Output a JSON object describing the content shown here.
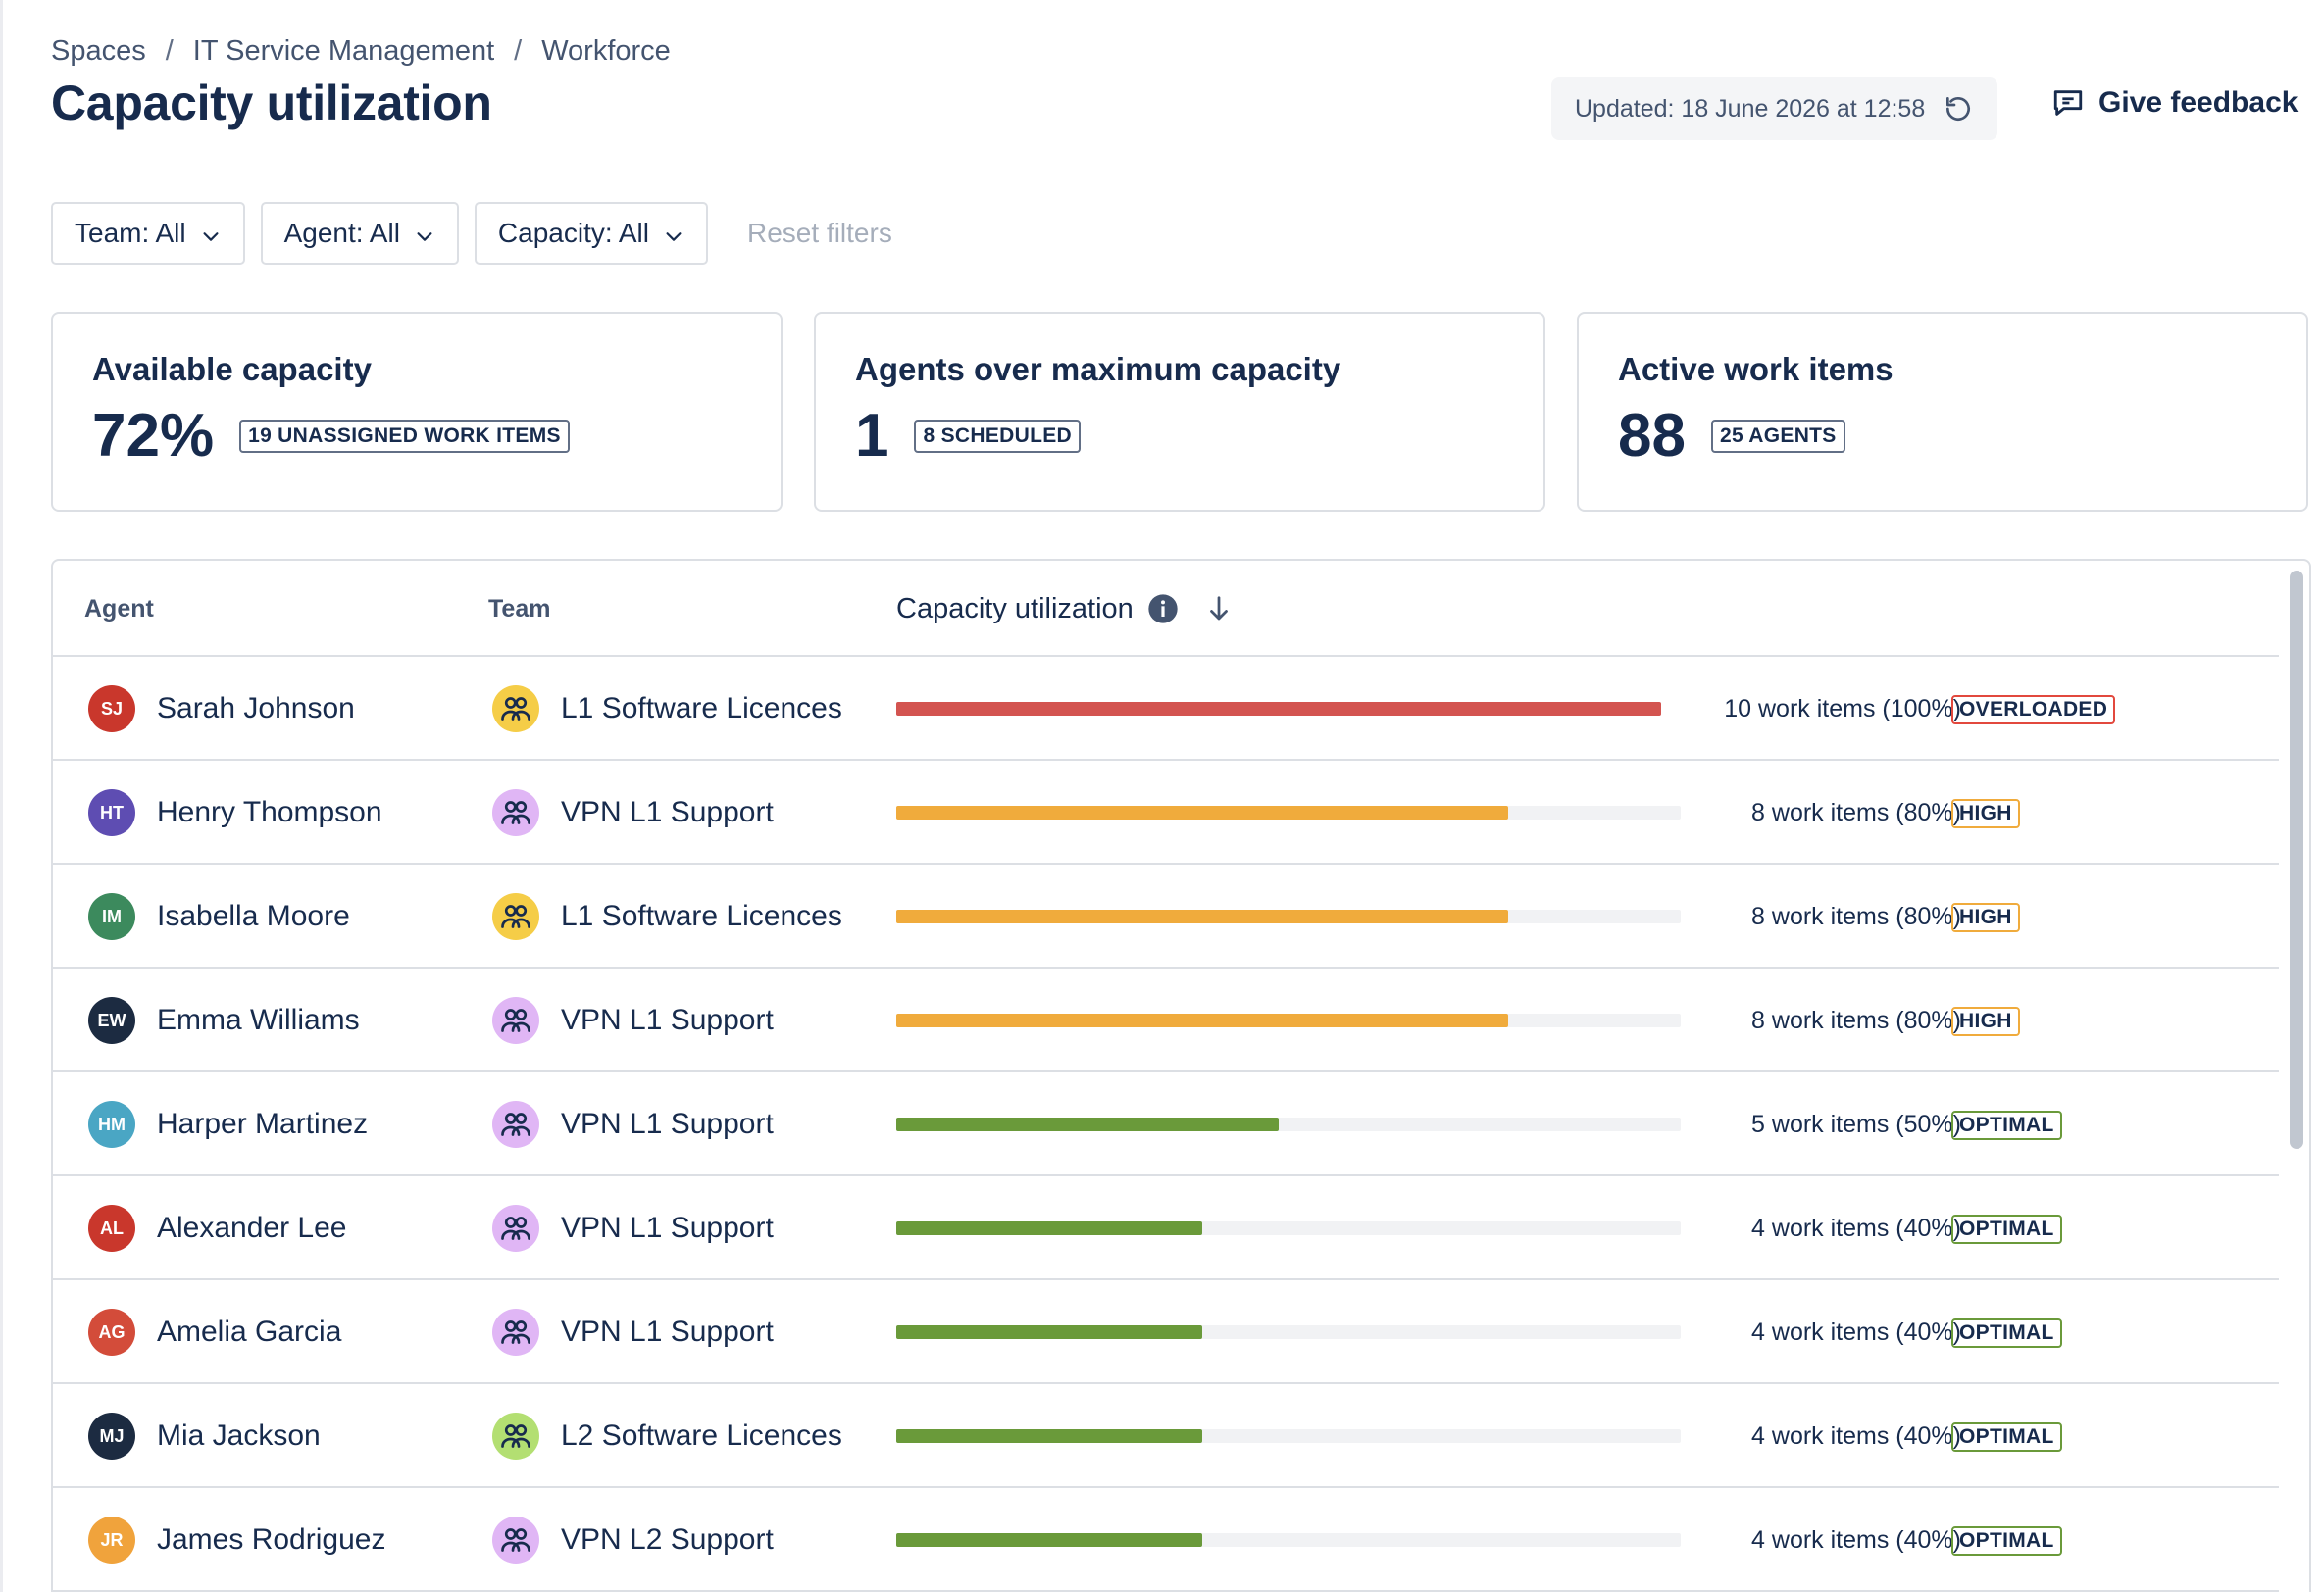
{
  "breadcrumb": {
    "items": [
      "Spaces",
      "IT Service Management",
      "Workforce"
    ],
    "separator": "/"
  },
  "page": {
    "title": "Capacity utilization"
  },
  "header": {
    "updated_text": "Updated: 18 June 2026 at 12:58",
    "feedback_label": "Give feedback"
  },
  "filters": {
    "team": "Team: All",
    "agent": "Agent: All",
    "capacity": "Capacity: All",
    "reset": "Reset filters"
  },
  "cards": [
    {
      "title": "Available capacity",
      "value": "72%",
      "badge": "19 UNASSIGNED WORK ITEMS"
    },
    {
      "title": "Agents over maximum capacity",
      "value": "1",
      "badge": "8 SCHEDULED"
    },
    {
      "title": "Active work items",
      "value": "88",
      "badge": "25 AGENTS"
    }
  ],
  "table": {
    "columns": {
      "agent": "Agent",
      "team": "Team",
      "capacity": "Capacity utilization"
    },
    "rows": [
      {
        "initials": "SJ",
        "avatar_color": "#c9372c",
        "name": "Sarah Johnson",
        "team": "L1 Software Licences",
        "team_color": "#f5cd47",
        "work_text": "10 work items (100%)",
        "percent": 100,
        "bar_color": "#d35450",
        "status": "OVERLOADED",
        "status_color": "#e2483d"
      },
      {
        "initials": "HT",
        "avatar_color": "#5e4db2",
        "name": "Henry Thompson",
        "team": "VPN L1 Support",
        "team_color": "#e0b6f5",
        "work_text": "8 work items (80%)",
        "percent": 80,
        "bar_color": "#f0ab3c",
        "status": "HIGH",
        "status_color": "#f0ab3c"
      },
      {
        "initials": "IM",
        "avatar_color": "#3c8a5d",
        "name": "Isabella Moore",
        "team": "L1 Software Licences",
        "team_color": "#f5cd47",
        "work_text": "8 work items (80%)",
        "percent": 80,
        "bar_color": "#f0ab3c",
        "status": "HIGH",
        "status_color": "#f0ab3c"
      },
      {
        "initials": "EW",
        "avatar_color": "#1c2b41",
        "name": "Emma Williams",
        "team": "VPN L1 Support",
        "team_color": "#e0b6f5",
        "work_text": "8 work items (80%)",
        "percent": 80,
        "bar_color": "#f0ab3c",
        "status": "HIGH",
        "status_color": "#f0ab3c"
      },
      {
        "initials": "HM",
        "avatar_color": "#4aa6c4",
        "name": "Harper Martinez",
        "team": "VPN L1 Support",
        "team_color": "#e0b6f5",
        "work_text": "5 work items (50%)",
        "percent": 50,
        "bar_color": "#6a9a3a",
        "status": "OPTIMAL",
        "status_color": "#6a9a3a"
      },
      {
        "initials": "AL",
        "avatar_color": "#c9372c",
        "name": "Alexander Lee",
        "team": "VPN L1 Support",
        "team_color": "#e0b6f5",
        "work_text": "4 work items (40%)",
        "percent": 40,
        "bar_color": "#6a9a3a",
        "status": "OPTIMAL",
        "status_color": "#6a9a3a"
      },
      {
        "initials": "AG",
        "avatar_color": "#d34c3a",
        "name": "Amelia Garcia",
        "team": "VPN L1 Support",
        "team_color": "#e0b6f5",
        "work_text": "4 work items (40%)",
        "percent": 40,
        "bar_color": "#6a9a3a",
        "status": "OPTIMAL",
        "status_color": "#6a9a3a"
      },
      {
        "initials": "MJ",
        "avatar_color": "#1c2b41",
        "name": "Mia Jackson",
        "team": "L2 Software Licences",
        "team_color": "#b3df72",
        "work_text": "4 work items (40%)",
        "percent": 40,
        "bar_color": "#6a9a3a",
        "status": "OPTIMAL",
        "status_color": "#6a9a3a"
      },
      {
        "initials": "JR",
        "avatar_color": "#f0a33c",
        "name": "James Rodriguez",
        "team": "VPN L2 Support",
        "team_color": "#e0b6f5",
        "work_text": "4 work items (40%)",
        "percent": 40,
        "bar_color": "#6a9a3a",
        "status": "OPTIMAL",
        "status_color": "#6a9a3a"
      }
    ]
  }
}
